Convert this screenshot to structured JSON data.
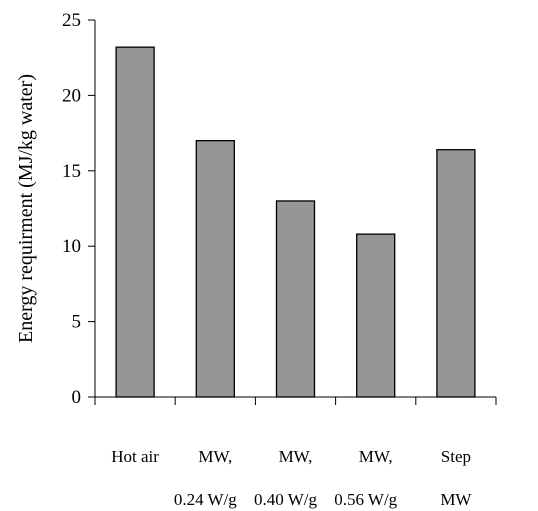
{
  "chart_data": {
    "type": "bar",
    "title": "",
    "xlabel": "",
    "ylabel": "Energy requirment (MJ/kg water)",
    "ylim": [
      0,
      25
    ],
    "yticks": [
      0,
      5,
      10,
      15,
      20,
      25
    ],
    "grid": false,
    "legend": "none",
    "categories": [
      [
        "Hot air"
      ],
      [
        "MW,",
        "0.24 W/g"
      ],
      [
        "MW,",
        "0.40 W/g"
      ],
      [
        "MW,",
        "0.56 W/g"
      ],
      [
        "Step",
        "MW"
      ]
    ],
    "values": [
      23.2,
      17.0,
      13.0,
      10.8,
      16.4
    ],
    "colors": {
      "bar_fill": "#969696",
      "bar_stroke": "#000000",
      "axis": "#000000"
    }
  }
}
